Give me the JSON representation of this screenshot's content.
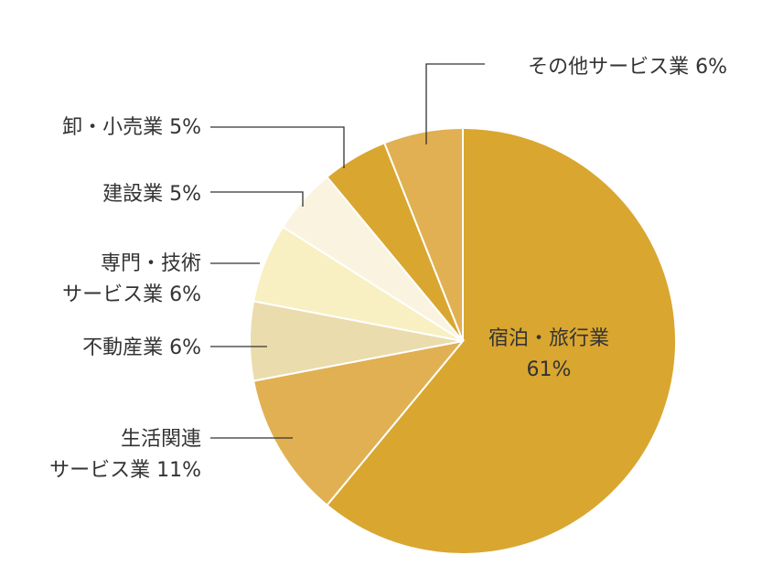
{
  "chart_data": {
    "type": "pie",
    "title": "",
    "start_angle_deg": 0,
    "direction": "clockwise",
    "slices": [
      {
        "label": "宿泊・旅行業",
        "lines": [
          "宿泊・旅行業",
          "61%"
        ],
        "value": 61,
        "color": "#d9a630"
      },
      {
        "label": "生活関連サービス業",
        "lines": [
          "生活関連",
          "サービス業 11%"
        ],
        "value": 11,
        "color": "#e0b052"
      },
      {
        "label": "不動産業",
        "lines": [
          "不動産業 6%"
        ],
        "value": 6,
        "color": "#ebdcad"
      },
      {
        "label": "専門・技術サービス業",
        "lines": [
          "専門・技術",
          "サービス業 6%"
        ],
        "value": 6,
        "color": "#f8f0c2"
      },
      {
        "label": "建設業",
        "lines": [
          "建設業 5%"
        ],
        "value": 5,
        "color": "#faf3e0"
      },
      {
        "label": "卸・小売業",
        "lines": [
          "卸・小売業 5%"
        ],
        "value": 5,
        "color": "#d9a630"
      },
      {
        "label": "その他サービス業",
        "lines": [
          "その他サービス業 6%"
        ],
        "value": 6,
        "color": "#e0b052"
      }
    ]
  }
}
